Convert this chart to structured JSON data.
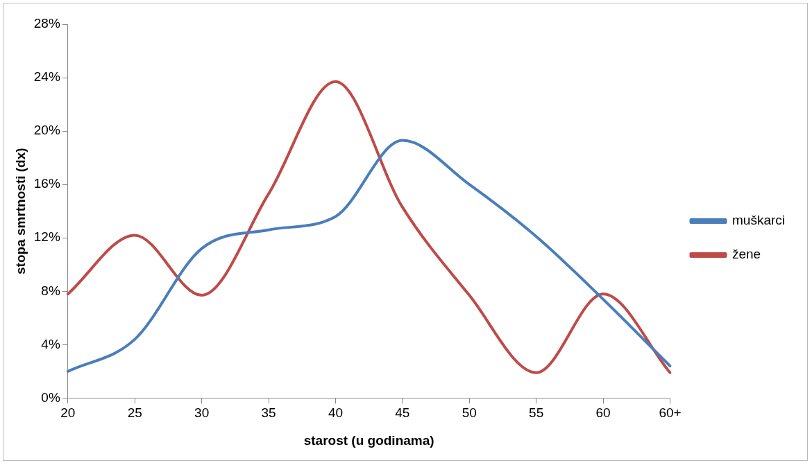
{
  "chart_data": {
    "type": "line",
    "xlabel": "starost (u godinama)",
    "ylabel": "stopa smrtnosti (dx)",
    "categories": [
      "20",
      "25",
      "30",
      "35",
      "40",
      "45",
      "50",
      "55",
      "60",
      "60+"
    ],
    "series": [
      {
        "name": "muškarci",
        "color": "#4a7ebb",
        "values": [
          2.0,
          4.4,
          11.2,
          12.6,
          13.6,
          19.3,
          16.0,
          12.1,
          7.4,
          2.4
        ]
      },
      {
        "name": "žene",
        "color": "#be4b48",
        "values": [
          7.8,
          12.2,
          7.7,
          15.3,
          23.7,
          14.3,
          7.7,
          1.9,
          7.8,
          1.9
        ]
      }
    ],
    "ylim": [
      0,
      28
    ],
    "yticks": [
      {
        "value": 0,
        "label": "0%"
      },
      {
        "value": 4,
        "label": "4%"
      },
      {
        "value": 8,
        "label": "8%"
      },
      {
        "value": 12,
        "label": "12%"
      },
      {
        "value": 16,
        "label": "16%"
      },
      {
        "value": 20,
        "label": "20%"
      },
      {
        "value": 24,
        "label": "24%"
      },
      {
        "value": 28,
        "label": "28%"
      }
    ],
    "grid": false,
    "legend": "right",
    "marker": "none",
    "line_style": "solid"
  }
}
